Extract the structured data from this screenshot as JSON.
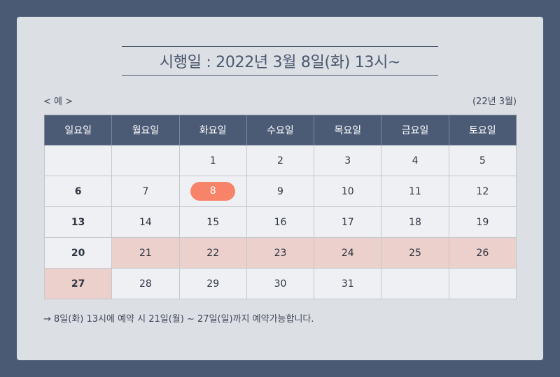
{
  "title": "시행일 : 2022년 3월 8일(화) 13시~",
  "example_label": "< 예 >",
  "month_label": "(22년 3월)",
  "weekdays": [
    "일요일",
    "월요일",
    "화요일",
    "수요일",
    "목요일",
    "금요일",
    "토요일"
  ],
  "weeks": [
    [
      "",
      "",
      "1",
      "2",
      "3",
      "4",
      "5"
    ],
    [
      "6",
      "7",
      "8",
      "9",
      "10",
      "11",
      "12"
    ],
    [
      "13",
      "14",
      "15",
      "16",
      "17",
      "18",
      "19"
    ],
    [
      "20",
      "21",
      "22",
      "23",
      "24",
      "25",
      "26"
    ],
    [
      "27",
      "28",
      "29",
      "30",
      "31",
      "",
      ""
    ]
  ],
  "note": "→ 8일(화) 13시에 예약 시 21일(월) ~ 27일(일)까지 예약가능합니다.",
  "colors": {
    "background": "#4a5a75",
    "header": "#4b5b76",
    "highlight_range": "#ecd0cb",
    "selected_day": "#f78469"
  }
}
